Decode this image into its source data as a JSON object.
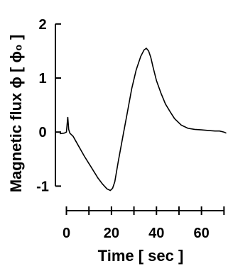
{
  "chart_data": {
    "type": "line",
    "xlabel": "Time [ sec ]",
    "ylabel": "Magnetic flux ϕ [ ϕ₀ ]",
    "x_ticks": [
      0,
      10,
      20,
      30,
      40,
      50,
      60,
      70
    ],
    "x_tick_labels": [
      "0",
      "20",
      "40",
      "60"
    ],
    "x_tick_label_values": [
      0,
      20,
      40,
      60
    ],
    "y_ticks": [
      -1,
      0,
      1,
      2
    ],
    "y_tick_labels": [
      "-1",
      "0",
      "1",
      "2"
    ],
    "xlim": [
      -3,
      74
    ],
    "ylim": [
      -1.1,
      2.05
    ],
    "grid": false,
    "series": [
      {
        "x": [
          -3,
          -1,
          0,
          0.6,
          1,
          1.5,
          3,
          5,
          8,
          11,
          14,
          16,
          18,
          19.5,
          20.5,
          21.5,
          23,
          25,
          27,
          29,
          31,
          33,
          34.5,
          35.5,
          36.5,
          37.5,
          38.5,
          40,
          42,
          44,
          46,
          48,
          51,
          54,
          57,
          60,
          63,
          66,
          68,
          70,
          71
        ],
        "y": [
          -0.03,
          -0.02,
          0.0,
          0.28,
          0.05,
          -0.02,
          -0.08,
          -0.23,
          -0.45,
          -0.65,
          -0.85,
          -0.96,
          -1.05,
          -1.08,
          -1.04,
          -0.92,
          -0.55,
          -0.1,
          0.35,
          0.8,
          1.15,
          1.4,
          1.52,
          1.55,
          1.5,
          1.38,
          1.2,
          0.95,
          0.72,
          0.52,
          0.38,
          0.25,
          0.13,
          0.07,
          0.05,
          0.04,
          0.03,
          0.02,
          0.02,
          0.0,
          -0.02
        ]
      }
    ]
  }
}
